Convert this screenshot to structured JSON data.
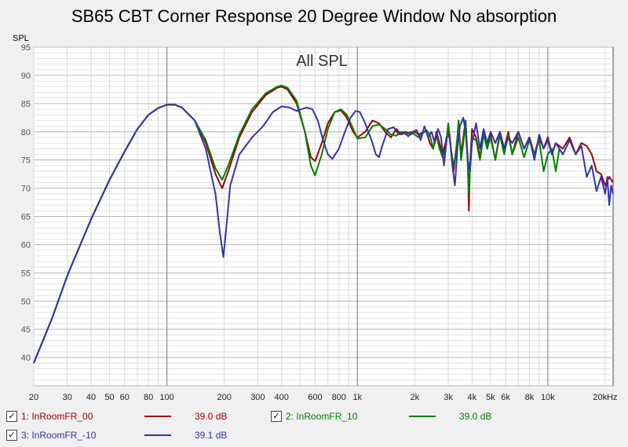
{
  "chart_data": {
    "type": "line",
    "title": "SB65 CBT Corner Response 20 Degree Window No absorption",
    "plot_label": "All SPL",
    "ylabel": "SPL",
    "xscale": "log",
    "xlim": [
      20,
      22000
    ],
    "ylim": [
      35,
      95
    ],
    "grid": true,
    "y_ticks": [
      "95",
      "90",
      "85",
      "80",
      "75",
      "70",
      "65",
      "60",
      "55",
      "50",
      "45",
      "40"
    ],
    "x_ticks": [
      {
        "value": 20,
        "label": "20"
      },
      {
        "value": 30,
        "label": "30"
      },
      {
        "value": 40,
        "label": "40"
      },
      {
        "value": 50,
        "label": "50"
      },
      {
        "value": 60,
        "label": "60"
      },
      {
        "value": 80,
        "label": "80"
      },
      {
        "value": 100,
        "label": "100"
      },
      {
        "value": 200,
        "label": "200"
      },
      {
        "value": 300,
        "label": "300"
      },
      {
        "value": 400,
        "label": "400"
      },
      {
        "value": 600,
        "label": "600"
      },
      {
        "value": 800,
        "label": "800"
      },
      {
        "value": 1000,
        "label": "1k"
      },
      {
        "value": 2000,
        "label": "2k"
      },
      {
        "value": 3000,
        "label": "3k"
      },
      {
        "value": 4000,
        "label": "4k"
      },
      {
        "value": 5000,
        "label": "5k"
      },
      {
        "value": 6000,
        "label": "6k"
      },
      {
        "value": 8000,
        "label": "8k"
      },
      {
        "value": 10000,
        "label": "10k"
      },
      {
        "value": 20000,
        "label": "20kHz"
      }
    ],
    "series": [
      {
        "name": "1: InRoomFR_00",
        "offset": "39.0 dB",
        "color": "#a00000",
        "points": [
          [
            20,
            39
          ],
          [
            25,
            47
          ],
          [
            30,
            54.5
          ],
          [
            40,
            64.5
          ],
          [
            50,
            71.5
          ],
          [
            60,
            76.5
          ],
          [
            70,
            80.5
          ],
          [
            80,
            83
          ],
          [
            90,
            84.2
          ],
          [
            100,
            84.8
          ],
          [
            110,
            84.8
          ],
          [
            120,
            84.3
          ],
          [
            140,
            82
          ],
          [
            160,
            78
          ],
          [
            180,
            72.5
          ],
          [
            195,
            70
          ],
          [
            210,
            73
          ],
          [
            240,
            79
          ],
          [
            280,
            83.5
          ],
          [
            330,
            86.5
          ],
          [
            380,
            87.8
          ],
          [
            400,
            88
          ],
          [
            430,
            87.5
          ],
          [
            480,
            85
          ],
          [
            530,
            80
          ],
          [
            570,
            75.5
          ],
          [
            600,
            74.8
          ],
          [
            650,
            78
          ],
          [
            700,
            81.5
          ],
          [
            760,
            83.5
          ],
          [
            820,
            83.8
          ],
          [
            880,
            82.5
          ],
          [
            950,
            80
          ],
          [
            1000,
            79
          ],
          [
            1100,
            80
          ],
          [
            1200,
            82
          ],
          [
            1300,
            81.5
          ],
          [
            1400,
            80
          ],
          [
            1500,
            79
          ],
          [
            1600,
            80.5
          ],
          [
            1700,
            79.5
          ],
          [
            1800,
            80
          ],
          [
            1900,
            79.5
          ],
          [
            2000,
            80
          ],
          [
            2100,
            79.5
          ],
          [
            2300,
            80.2
          ],
          [
            2400,
            78
          ],
          [
            2500,
            77
          ],
          [
            2600,
            80
          ],
          [
            2700,
            78
          ],
          [
            2800,
            76
          ],
          [
            2900,
            78
          ],
          [
            3000,
            80.5
          ],
          [
            3100,
            77
          ],
          [
            3200,
            73
          ],
          [
            3300,
            77
          ],
          [
            3400,
            81
          ],
          [
            3500,
            76
          ],
          [
            3600,
            79
          ],
          [
            3700,
            82
          ],
          [
            3800,
            75
          ],
          [
            3850,
            66
          ],
          [
            3900,
            74
          ],
          [
            4000,
            80.5
          ],
          [
            4200,
            79
          ],
          [
            4400,
            75.5
          ],
          [
            4600,
            80
          ],
          [
            4800,
            77
          ],
          [
            5000,
            79.5
          ],
          [
            5300,
            75
          ],
          [
            5600,
            80
          ],
          [
            5900,
            77
          ],
          [
            6200,
            80
          ],
          [
            6500,
            76
          ],
          [
            7000,
            80
          ],
          [
            7500,
            77
          ],
          [
            8000,
            79
          ],
          [
            8500,
            76
          ],
          [
            9000,
            79
          ],
          [
            9500,
            77
          ],
          [
            10000,
            79
          ],
          [
            10500,
            76
          ],
          [
            11000,
            78
          ],
          [
            12000,
            77
          ],
          [
            13000,
            79
          ],
          [
            14000,
            76
          ],
          [
            15000,
            78
          ],
          [
            16000,
            77.5
          ],
          [
            17000,
            76
          ],
          [
            18000,
            73
          ],
          [
            19000,
            72.5
          ],
          [
            20000,
            70.5
          ],
          [
            21000,
            72
          ],
          [
            22000,
            71
          ]
        ]
      },
      {
        "name": "2: InRoomFR_10",
        "offset": "39.0 dB",
        "color": "#008000",
        "points": [
          [
            20,
            39
          ],
          [
            25,
            47
          ],
          [
            30,
            54.5
          ],
          [
            40,
            64.5
          ],
          [
            50,
            71.5
          ],
          [
            60,
            76.5
          ],
          [
            70,
            80.5
          ],
          [
            80,
            83
          ],
          [
            90,
            84.2
          ],
          [
            100,
            84.8
          ],
          [
            110,
            84.8
          ],
          [
            120,
            84.3
          ],
          [
            140,
            82
          ],
          [
            160,
            78.5
          ],
          [
            180,
            73.5
          ],
          [
            195,
            71.5
          ],
          [
            210,
            74
          ],
          [
            240,
            79.5
          ],
          [
            280,
            84
          ],
          [
            330,
            86.8
          ],
          [
            380,
            88
          ],
          [
            400,
            88.2
          ],
          [
            430,
            87.8
          ],
          [
            480,
            85.5
          ],
          [
            530,
            80
          ],
          [
            570,
            74
          ],
          [
            600,
            72.3
          ],
          [
            650,
            76
          ],
          [
            700,
            80.5
          ],
          [
            760,
            83.5
          ],
          [
            820,
            84
          ],
          [
            880,
            83
          ],
          [
            950,
            80.5
          ],
          [
            1000,
            78.8
          ],
          [
            1100,
            79
          ],
          [
            1200,
            81
          ],
          [
            1300,
            81.3
          ],
          [
            1400,
            80.5
          ],
          [
            1500,
            79.5
          ],
          [
            1600,
            79.3
          ],
          [
            1700,
            80
          ],
          [
            1800,
            79.5
          ],
          [
            1900,
            80
          ],
          [
            2000,
            79.5
          ],
          [
            2100,
            79
          ],
          [
            2300,
            80.3
          ],
          [
            2400,
            79.5
          ],
          [
            2500,
            77
          ],
          [
            2600,
            79.5
          ],
          [
            2700,
            77
          ],
          [
            2800,
            75.5
          ],
          [
            2900,
            77
          ],
          [
            3000,
            81.5
          ],
          [
            3100,
            77
          ],
          [
            3200,
            74
          ],
          [
            3300,
            76
          ],
          [
            3400,
            82
          ],
          [
            3500,
            75
          ],
          [
            3600,
            78
          ],
          [
            3700,
            82
          ],
          [
            3800,
            74
          ],
          [
            3850,
            69
          ],
          [
            3900,
            73
          ],
          [
            4000,
            79
          ],
          [
            4200,
            78.5
          ],
          [
            4400,
            75
          ],
          [
            4600,
            79.5
          ],
          [
            4800,
            77
          ],
          [
            5000,
            79
          ],
          [
            5300,
            75
          ],
          [
            5600,
            79.5
          ],
          [
            5900,
            76
          ],
          [
            6200,
            79.5
          ],
          [
            6500,
            76
          ],
          [
            7000,
            79
          ],
          [
            7500,
            75.5
          ],
          [
            8000,
            78.5
          ],
          [
            8500,
            76
          ],
          [
            9000,
            78.5
          ],
          [
            9500,
            73
          ],
          [
            10000,
            76
          ],
          [
            10500,
            77
          ],
          [
            11000,
            73
          ],
          [
            11500,
            77
          ],
          [
            12000,
            76
          ]
        ]
      },
      {
        "name": "3: InRoomFR_-10",
        "offset": "39.1 dB",
        "color": "#3333aa",
        "points": [
          [
            20,
            39
          ],
          [
            25,
            47
          ],
          [
            30,
            54.5
          ],
          [
            40,
            64.5
          ],
          [
            50,
            71.5
          ],
          [
            60,
            76.5
          ],
          [
            70,
            80.5
          ],
          [
            80,
            83
          ],
          [
            90,
            84.2
          ],
          [
            100,
            84.8
          ],
          [
            110,
            84.8
          ],
          [
            120,
            84.3
          ],
          [
            140,
            82
          ],
          [
            160,
            77
          ],
          [
            180,
            69
          ],
          [
            190,
            62
          ],
          [
            198,
            57.8
          ],
          [
            205,
            63
          ],
          [
            215,
            70.5
          ],
          [
            240,
            76
          ],
          [
            280,
            79
          ],
          [
            320,
            81
          ],
          [
            360,
            83.5
          ],
          [
            400,
            84.5
          ],
          [
            440,
            84.3
          ],
          [
            480,
            83.7
          ],
          [
            540,
            84.3
          ],
          [
            580,
            84
          ],
          [
            620,
            82
          ],
          [
            660,
            78.5
          ],
          [
            700,
            76
          ],
          [
            740,
            75.2
          ],
          [
            800,
            77
          ],
          [
            860,
            80
          ],
          [
            920,
            82.5
          ],
          [
            980,
            83.7
          ],
          [
            1030,
            83.5
          ],
          [
            1100,
            81.5
          ],
          [
            1200,
            78
          ],
          [
            1250,
            76
          ],
          [
            1300,
            75.5
          ],
          [
            1350,
            77.5
          ],
          [
            1450,
            80.5
          ],
          [
            1550,
            80.8
          ],
          [
            1650,
            79.5
          ],
          [
            1750,
            80
          ],
          [
            1850,
            79.2
          ],
          [
            1950,
            80
          ],
          [
            2050,
            80.3
          ],
          [
            2150,
            78.5
          ],
          [
            2250,
            81
          ],
          [
            2350,
            79
          ],
          [
            2450,
            80
          ],
          [
            2550,
            78
          ],
          [
            2650,
            80.5
          ],
          [
            2750,
            79
          ],
          [
            2850,
            74
          ],
          [
            2950,
            79
          ],
          [
            3050,
            79.5
          ],
          [
            3150,
            74
          ],
          [
            3250,
            70.5
          ],
          [
            3350,
            77
          ],
          [
            3450,
            81
          ],
          [
            3600,
            82.5
          ],
          [
            3700,
            80
          ],
          [
            3800,
            75
          ],
          [
            3900,
            73
          ],
          [
            4000,
            78
          ],
          [
            4200,
            81.5
          ],
          [
            4400,
            77
          ],
          [
            4600,
            80.5
          ],
          [
            4800,
            78
          ],
          [
            5000,
            80
          ],
          [
            5300,
            78
          ],
          [
            5600,
            80
          ],
          [
            5900,
            77
          ],
          [
            6200,
            79
          ],
          [
            6500,
            78
          ],
          [
            7000,
            80
          ],
          [
            7500,
            77
          ],
          [
            8000,
            79
          ],
          [
            8500,
            75
          ],
          [
            9000,
            79.5
          ],
          [
            9500,
            77
          ],
          [
            10000,
            78.5
          ],
          [
            10500,
            76
          ],
          [
            11000,
            78
          ],
          [
            12000,
            76
          ],
          [
            13000,
            78.5
          ],
          [
            14000,
            76
          ],
          [
            15000,
            77.5
          ],
          [
            16000,
            72
          ],
          [
            17000,
            74
          ],
          [
            18000,
            69.5
          ],
          [
            19000,
            72
          ],
          [
            20000,
            69
          ],
          [
            20500,
            72
          ],
          [
            21000,
            67
          ],
          [
            21500,
            70.5
          ],
          [
            22000,
            69
          ]
        ]
      }
    ]
  }
}
